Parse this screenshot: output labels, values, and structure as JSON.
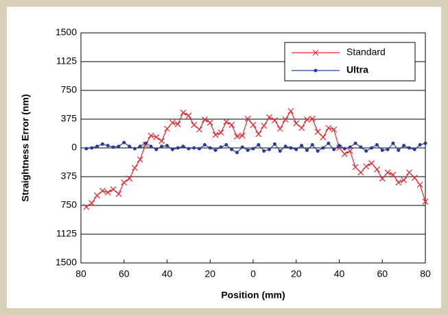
{
  "chart_data": {
    "type": "line",
    "xlabel": "Position (mm)",
    "ylabel": "Straightness Error (nm)",
    "xlim": [
      -80,
      80
    ],
    "xticks": [
      {
        "value": -80,
        "label": "80"
      },
      {
        "value": -60,
        "label": "60"
      },
      {
        "value": -40,
        "label": "40"
      },
      {
        "value": -20,
        "label": "20"
      },
      0,
      20,
      40,
      60,
      80
    ],
    "ylim": [
      -1500,
      1500
    ],
    "yticks": [
      {
        "value": -1500,
        "label": "1500"
      },
      {
        "value": -1125,
        "label": "1125"
      },
      {
        "value": -750,
        "label": "750"
      },
      {
        "value": -375,
        "label": "375"
      },
      0,
      375,
      750,
      1125,
      1500
    ],
    "grid": true,
    "legend": "upper right",
    "x": [
      -77.5,
      -75,
      -72.5,
      -70,
      -67.5,
      -65,
      -62.5,
      -60,
      -57.5,
      -55,
      -52.5,
      -50,
      -47.5,
      -45,
      -42.5,
      -40,
      -37.5,
      -35,
      -32.5,
      -30,
      -27.5,
      -25,
      -22.5,
      -20,
      -17.5,
      -15,
      -12.5,
      -10,
      -7.5,
      -5,
      -2.5,
      0,
      2.5,
      5,
      7.5,
      10,
      12.5,
      15,
      17.5,
      20,
      22.5,
      25,
      27.5,
      30,
      32.5,
      35,
      37.5,
      40,
      42.5,
      45,
      47.5,
      50,
      52.5,
      55,
      57.5,
      60,
      62.5,
      65,
      67.5,
      70,
      72.5,
      75,
      77.5,
      80
    ],
    "series": [
      {
        "name": "Standard",
        "color": "#e8202a",
        "marker": "x",
        "values": [
          -770,
          -720,
          -620,
          -560,
          -580,
          -540,
          -600,
          -450,
          -400,
          -260,
          -150,
          40,
          160,
          140,
          90,
          250,
          330,
          310,
          460,
          420,
          300,
          240,
          370,
          330,
          170,
          200,
          340,
          300,
          150,
          160,
          380,
          300,
          180,
          290,
          400,
          360,
          250,
          370,
          480,
          320,
          260,
          370,
          380,
          210,
          140,
          260,
          240,
          0,
          -80,
          -40,
          -250,
          -320,
          -240,
          -200,
          -280,
          -400,
          -320,
          -350,
          -450,
          -420,
          -320,
          -390,
          -480,
          -700
        ]
      },
      {
        "name": "Ultra",
        "color": "#2a3a9a",
        "marker": "o",
        "values": [
          -10,
          0,
          20,
          50,
          30,
          10,
          20,
          70,
          20,
          -10,
          20,
          60,
          20,
          -20,
          20,
          30,
          -20,
          0,
          20,
          -10,
          0,
          -10,
          40,
          0,
          -30,
          10,
          40,
          -20,
          -60,
          10,
          -30,
          -10,
          40,
          -40,
          -20,
          50,
          -40,
          20,
          0,
          -20,
          30,
          -30,
          40,
          -40,
          0,
          60,
          -20,
          30,
          -10,
          10,
          60,
          10,
          -40,
          0,
          40,
          -30,
          -20,
          60,
          -30,
          30,
          0,
          -20,
          40,
          60
        ]
      }
    ]
  }
}
